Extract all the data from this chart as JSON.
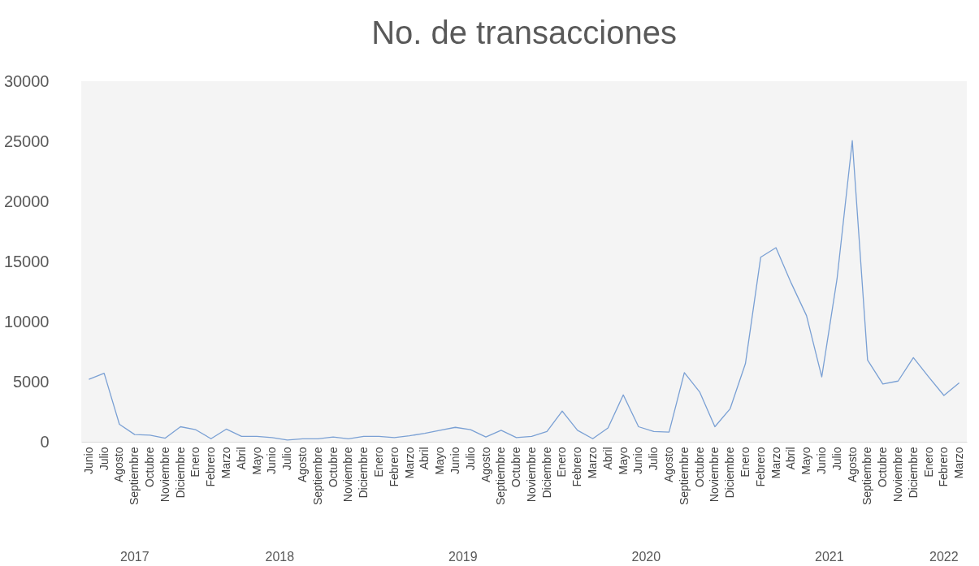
{
  "chart_data": {
    "type": "line",
    "title": "No. de transacciones",
    "categories": [
      "Junio",
      "Julio",
      "Agosto",
      "Septiembre",
      "Octubre",
      "Noviembre",
      "Diciembre",
      "Enero",
      "Febrero",
      "Marzo",
      "Abril",
      "Mayo",
      "Junio",
      "Julio",
      "Agosto",
      "Septiembre",
      "Octubre",
      "Noviembre",
      "Diciembre",
      "Enero",
      "Febrero",
      "Marzo",
      "Abril",
      "Mayo",
      "Junio",
      "Julio",
      "Agosto",
      "Septiembre",
      "Octubre",
      "Noviembre",
      "Diciembre",
      "Enero",
      "Febrero",
      "Marzo",
      "Abril",
      "Mayo",
      "Junio",
      "Julio",
      "Agosto",
      "Septiembre",
      "Octubre",
      "Noviembre",
      "Diciembre",
      "Enero",
      "Febrero",
      "Marzo",
      "Abril",
      "Mayo",
      "Junio",
      "Julio",
      "Agosto",
      "Septiembre",
      "Octubre",
      "Noviembre",
      "Diciembre",
      "Enero",
      "Febrero",
      "Marzo"
    ],
    "series": [
      {
        "color": "#7aa0d4",
        "values": [
          5200,
          5700,
          1450,
          600,
          550,
          300,
          1250,
          1000,
          250,
          1050,
          450,
          450,
          350,
          150,
          250,
          250,
          400,
          250,
          450,
          450,
          350,
          500,
          700,
          950,
          1200,
          1000,
          400,
          950,
          350,
          450,
          850,
          2550,
          950,
          250,
          1150,
          3900,
          1250,
          850,
          800,
          5750,
          4150,
          1250,
          2750,
          6500,
          15350,
          16150,
          13200,
          10500,
          5400,
          13550,
          25050,
          6800,
          4800,
          5050,
          7000,
          5400,
          3850,
          4900
        ]
      }
    ],
    "ylim": [
      0,
      30000
    ],
    "yticks": [
      0,
      5000,
      10000,
      15000,
      20000,
      25000,
      30000
    ],
    "grid": false,
    "annotations": [
      "2017",
      "2018",
      "2019",
      "2020",
      "2021",
      "2022"
    ]
  }
}
